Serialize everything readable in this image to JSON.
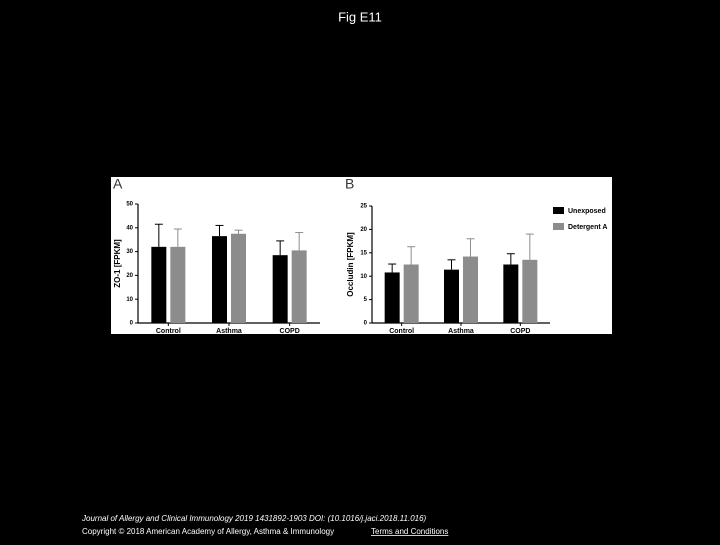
{
  "header": {
    "title": "Fig E11"
  },
  "chart_data": [
    {
      "type": "bar",
      "panel_label": "A",
      "y_label": "ZO-1 [FPKM]",
      "categories": [
        "Control",
        "Asthma",
        "COPD"
      ],
      "series": [
        {
          "color": "#000000",
          "values": [
            32,
            36.5,
            28.5
          ],
          "errors": [
            9.5,
            4.5,
            6
          ]
        },
        {
          "color": "#8c8c8c",
          "values": [
            32,
            37.5,
            30.5
          ],
          "errors": [
            7.5,
            1.5,
            7.5
          ]
        }
      ],
      "ylim": [
        0,
        50
      ],
      "yticks": [
        0,
        10,
        20,
        30,
        40,
        50
      ]
    },
    {
      "type": "bar",
      "panel_label": "B",
      "y_label": "Occludin [FPKM]",
      "categories": [
        "Control",
        "Asthma",
        "COPD"
      ],
      "series": [
        {
          "name": "Unexposed",
          "color": "#000000",
          "values": [
            10.8,
            11.4,
            12.5
          ],
          "errors": [
            1.8,
            2.1,
            2.3
          ]
        },
        {
          "name": "Detergent A",
          "color": "#8c8c8c",
          "values": [
            12.5,
            14.2,
            13.5
          ],
          "errors": [
            3.8,
            3.8,
            5.5
          ]
        }
      ],
      "ylim": [
        0,
        25
      ],
      "yticks": [
        0,
        5,
        10,
        15,
        20,
        25
      ],
      "legend": "right"
    }
  ],
  "footer": {
    "citation": "Journal of Allergy and Clinical Immunology 2019 1431892-1903 DOI: (10.1016/j.jaci.2018.11.016)",
    "copyright": "Copyright © 2018 American Academy of Allergy, Asthma & Immunology",
    "link": "Terms and Conditions"
  }
}
